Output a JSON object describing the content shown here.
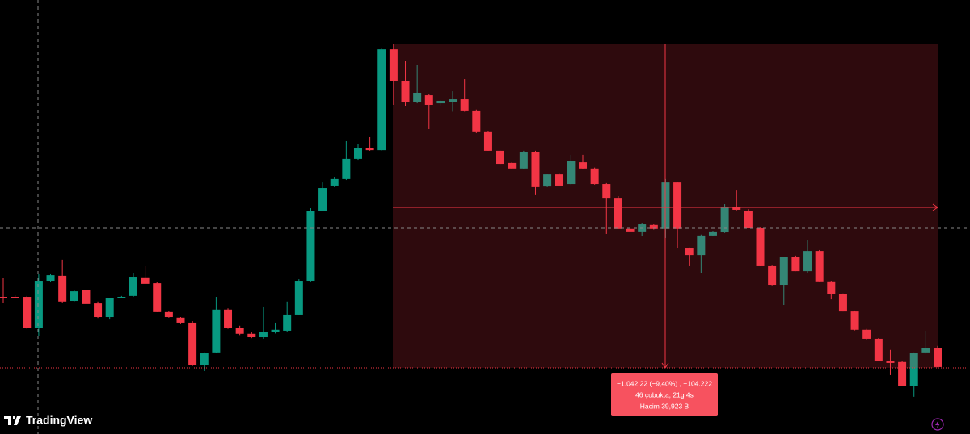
{
  "chart_data": {
    "type": "candlestick",
    "ylim": [
      9831,
      11230
    ],
    "up_color": "#089981",
    "down_color": "#f23645",
    "open": [
      10273,
      10273,
      10273,
      10174,
      10325,
      10341,
      10260,
      10294,
      10252,
      10208,
      10273,
      10276,
      10336,
      10317,
      10224,
      10206,
      10190,
      10052,
      10094,
      10232,
      10174,
      10154,
      10143,
      10159,
      10164,
      10216,
      10325,
      10551,
      10632,
      10653,
      10718,
      10754,
      10746,
      11071,
      10970,
      10900,
      10923,
      10897,
      10902,
      10910,
      10874,
      10804,
      10744,
      10705,
      10687,
      10739,
      10629,
      10668,
      10637,
      10707,
      10687,
      10637,
      10590,
      10492,
      10484,
      10505,
      10492,
      10642,
      10429,
      10408,
      10471,
      10481,
      10564,
      10551,
      10494,
      10372,
      10312,
      10403,
      10356,
      10421,
      10323,
      10281,
      10226,
      10167,
      10138,
      10065,
      10063,
      9987,
      10094,
      10107
    ],
    "high": [
      10333,
      10278,
      10276,
      10346,
      10346,
      10393,
      10294,
      10296,
      10258,
      10268,
      10276,
      10351,
      10372,
      10320,
      10226,
      10208,
      10195,
      10094,
      10273,
      10236,
      10180,
      10159,
      10242,
      10190,
      10258,
      10330,
      10559,
      10642,
      10660,
      10775,
      10767,
      10788,
      11074,
      11087,
      11035,
      11022,
      10928,
      10907,
      10936,
      10975,
      10877,
      10806,
      10746,
      10707,
      10744,
      10744,
      10668,
      10670,
      10731,
      10731,
      10690,
      10640,
      10598,
      10494,
      10510,
      10507,
      10653,
      10645,
      10432,
      10474,
      10486,
      10572,
      10616,
      10556,
      10496,
      10374,
      10403,
      10406,
      10455,
      10424,
      10325,
      10284,
      10229,
      10170,
      10140,
      10102,
      10065,
      10094,
      10164,
      10115
    ],
    "low": [
      10255,
      10268,
      10170,
      10148,
      10320,
      10255,
      10258,
      10250,
      10205,
      10200,
      10271,
      10273,
      10315,
      10224,
      10206,
      10185,
      10050,
      10034,
      10091,
      10170,
      10150,
      10140,
      10138,
      10155,
      10160,
      10214,
      10323,
      10549,
      10627,
      10650,
      10715,
      10744,
      10744,
      10892,
      10887,
      10897,
      10814,
      10890,
      10870,
      10870,
      10801,
      10744,
      10700,
      10684,
      10684,
      10601,
      10627,
      10630,
      10634,
      10684,
      10635,
      10476,
      10492,
      10481,
      10470,
      10490,
      10463,
      10429,
      10372,
      10351,
      10468,
      10479,
      10552,
      10494,
      10372,
      10310,
      10247,
      10356,
      10350,
      10323,
      10265,
      10226,
      10165,
      10135,
      10065,
      10021,
      9985,
      9951,
      10090,
      10047
    ],
    "close": [
      10271,
      10271,
      10172,
      10325,
      10343,
      10258,
      10291,
      10250,
      10208,
      10268,
      10273,
      10338,
      10315,
      10224,
      10208,
      10190,
      10052,
      10091,
      10232,
      10174,
      10154,
      10143,
      10159,
      10167,
      10216,
      10325,
      10551,
      10624,
      10653,
      10718,
      10754,
      10746,
      11071,
      10970,
      10900,
      10931,
      10892,
      10905,
      10910,
      10874,
      10804,
      10744,
      10702,
      10687,
      10739,
      10627,
      10668,
      10632,
      10710,
      10687,
      10637,
      10590,
      10492,
      10484,
      10507,
      10492,
      10642,
      10492,
      10408,
      10471,
      10484,
      10564,
      10554,
      10494,
      10372,
      10312,
      10403,
      10356,
      10421,
      10323,
      10281,
      10226,
      10167,
      10138,
      10065,
      10060,
      9987,
      10091,
      10107,
      10047
    ]
  },
  "measurement": {
    "lines": [
      "−1.042,22 (−9,40%) , −104.222",
      "46 çubukta, 21g 4s",
      "Hacim 39,923 B"
    ]
  },
  "logo": "TradingView"
}
